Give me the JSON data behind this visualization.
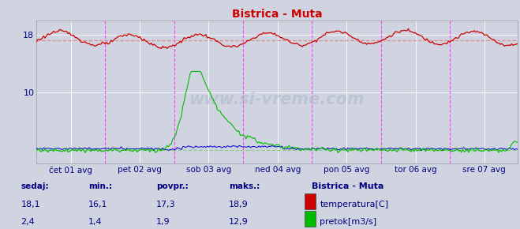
{
  "title": "Bistrica - Muta",
  "background_color": "#d0d4e0",
  "plot_bg_color": "#d0d4e0",
  "grid_color": "#ffffff",
  "x_tick_labels": [
    "čet 01 avg",
    "pet 02 avg",
    "sob 03 avg",
    "ned 04 avg",
    "pon 05 avg",
    "tor 06 avg",
    "sre 07 avg"
  ],
  "y_ticks": [
    10,
    18
  ],
  "ylim": [
    0,
    20
  ],
  "xlim": [
    0,
    336
  ],
  "temp_avg": 17.3,
  "temp_min": 16.1,
  "temp_max": 18.9,
  "temp_current": 18.1,
  "flow_avg": 1.9,
  "flow_min": 1.4,
  "flow_max": 12.9,
  "flow_current": 2.4,
  "temp_color": "#cc0000",
  "flow_color": "#00bb00",
  "avg_line_color_temp": "#dd8888",
  "avg_line_color_flow": "#88cc88",
  "vline_color": "#ff44ff",
  "legend_title": "Bistrica - Muta",
  "legend_title_color": "#000080",
  "label_color": "#000080",
  "num_points": 336,
  "watermark": "www.si-vreme.com"
}
